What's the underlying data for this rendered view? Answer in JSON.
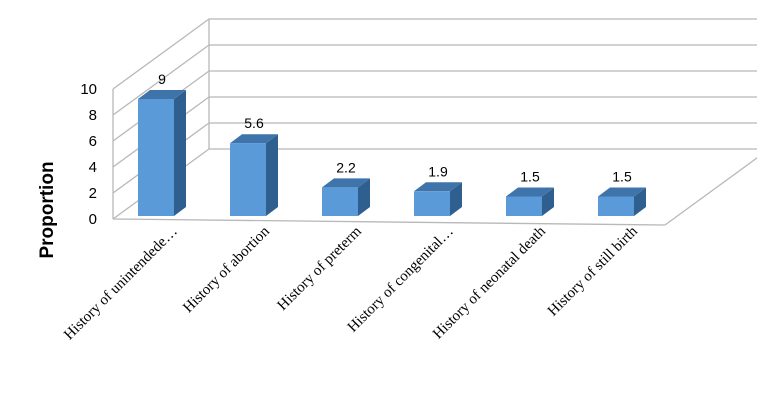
{
  "chart_data": {
    "type": "bar",
    "style": "3d-column",
    "categories": [
      "History of unintendede…",
      "History of abortion",
      "History of preterm",
      "History of congenital…",
      "History of neonatal death",
      "History of still birth"
    ],
    "values": [
      9,
      5.6,
      2.2,
      1.9,
      1.5,
      1.5
    ],
    "data_labels": [
      "9",
      "5.6",
      "2.2",
      "1.9",
      "1.5",
      "1.5"
    ],
    "ylabel": "Proportion",
    "ylim": [
      0,
      10
    ],
    "yticks": [
      "0",
      "2",
      "4",
      "6",
      "8",
      "10"
    ],
    "grid": true,
    "legend": "none",
    "bar_color": "#5a9ad8",
    "bar_side_color": "#2f5f8f",
    "bar_top_color": "#3f74aa"
  }
}
